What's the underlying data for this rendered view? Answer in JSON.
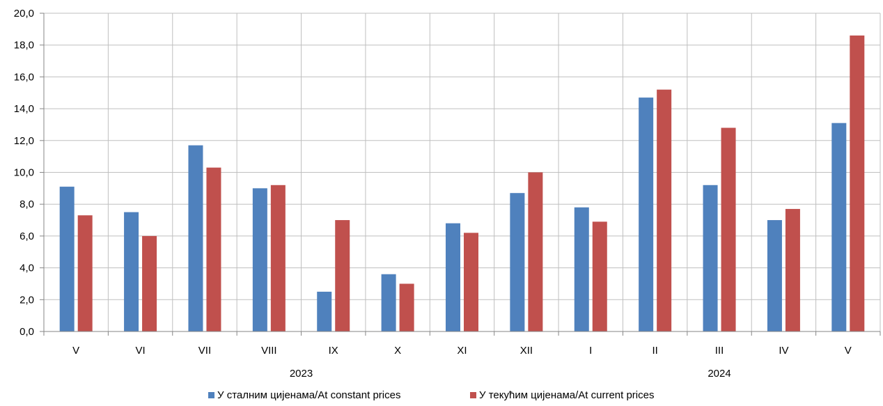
{
  "chart_data": {
    "type": "bar",
    "title": "",
    "xlabel": "",
    "ylabel": "",
    "ylim": [
      0,
      20
    ],
    "y_ticks": [
      "0,0",
      "2,0",
      "4,0",
      "6,0",
      "8,0",
      "10,0",
      "12,0",
      "14,0",
      "16,0",
      "18,0",
      "20,0"
    ],
    "categories": [
      "V",
      "VI",
      "VII",
      "VIII",
      "IX",
      "X",
      "XI",
      "XII",
      "I",
      "II",
      "III",
      "IV",
      "V"
    ],
    "year_groups": [
      {
        "label": "2023",
        "start_index": 0,
        "end_index": 7
      },
      {
        "label": "2024",
        "start_index": 8,
        "end_index": 12
      }
    ],
    "series": [
      {
        "name": "У сталним цијенама/At constant prices",
        "color": "#4f81bd",
        "values": [
          9.1,
          7.5,
          11.7,
          9.0,
          2.5,
          3.6,
          6.8,
          8.7,
          7.8,
          14.7,
          9.2,
          7.0,
          13.1
        ]
      },
      {
        "name": "У текућим цијенама/At current prices",
        "color": "#c0504d",
        "values": [
          7.3,
          6.0,
          10.3,
          9.2,
          7.0,
          3.0,
          6.2,
          10.0,
          6.9,
          15.2,
          12.8,
          7.7,
          18.6
        ]
      }
    ],
    "grid": true,
    "legend_position": "bottom"
  }
}
